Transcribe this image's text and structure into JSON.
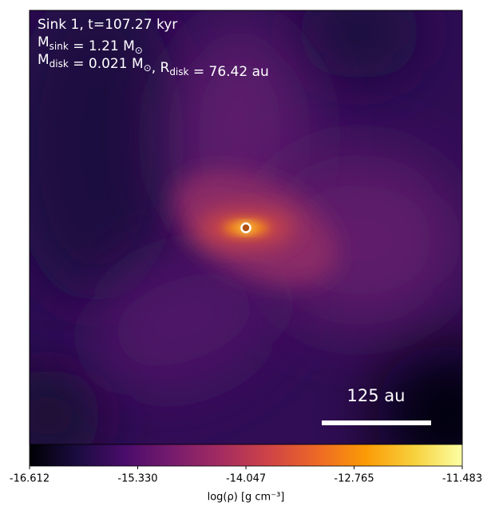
{
  "chart_data": {
    "type": "density-map",
    "annotation_lines": [
      [
        {
          "text": "Sink 1, t=107.27 kyr"
        }
      ],
      [
        {
          "text": "M"
        },
        {
          "sub": "sink"
        },
        {
          "text": " = 1.21 M"
        },
        {
          "sub": "⊙"
        }
      ],
      [
        {
          "text": "M"
        },
        {
          "sub": "disk"
        },
        {
          "text": " = 0.021 M"
        },
        {
          "sub": "⊙"
        },
        {
          "text": ", R"
        },
        {
          "sub": "disk"
        },
        {
          "text": " = 76.42 au"
        }
      ]
    ],
    "scale_bar_label": "125 au",
    "colorbar": {
      "label": "log(ρ) [g cm⁻³]",
      "colormap": [
        "#000004",
        "#1b0c41",
        "#4a0c6b",
        "#781c6d",
        "#a52c60",
        "#cf4446",
        "#ed6925",
        "#fb9b06",
        "#f7d13d",
        "#fcffa4"
      ],
      "lim": [
        -16.612,
        -11.483
      ],
      "ticks": [
        -16.612,
        {
          "value": -15.33,
          "label": "-15.330"
        },
        -14.047,
        -12.765,
        -11.483
      ]
    }
  }
}
